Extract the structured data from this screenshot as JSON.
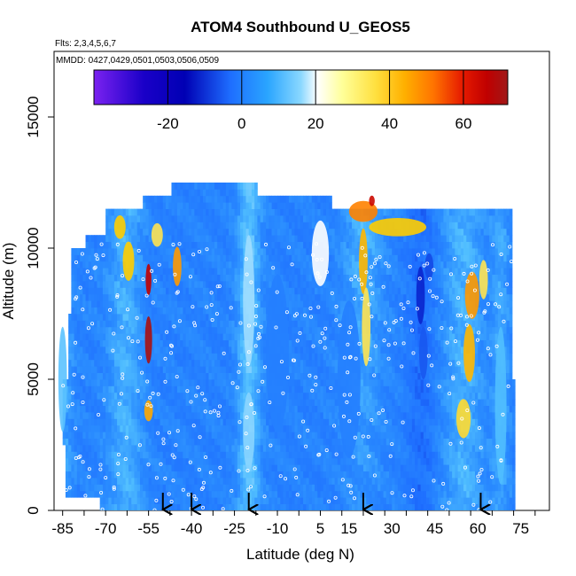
{
  "chart_data": {
    "type": "heatmap",
    "title": "ATOM4 Southbound U_GEOS5",
    "subtitle_flights": "Flts: 2,3,4,5,6,7",
    "subtitle_dates": "MMDD: 0427,0429,0501,0503,0506,0509",
    "xlabel": "Latitude (deg N)",
    "ylabel": "Altitude (m)",
    "xlim": [
      -88,
      85
    ],
    "ylim": [
      0,
      17500
    ],
    "x_ticks": [
      -85,
      -70,
      -55,
      -40,
      -25,
      -10,
      5,
      15,
      30,
      45,
      60,
      75
    ],
    "y_ticks": [
      0,
      5000,
      10000,
      15000
    ],
    "colorbar": {
      "range": [
        -40,
        72
      ],
      "ticks": [
        -20,
        0,
        20,
        40,
        60
      ],
      "colors": [
        "#7b22f0",
        "#0000b4",
        "#1e6eff",
        "#5ac8ff",
        "#ffffff",
        "#ffff80",
        "#ffd000",
        "#ff7f00",
        "#dd0000",
        "#a01818"
      ]
    },
    "curtain": {
      "lat_range": [
        -88,
        72
      ],
      "layer_tops": [
        {
          "alt": 12500,
          "lat_min": -47,
          "lat_max": -17
        },
        {
          "alt": 12000,
          "lat_min": -57,
          "lat_max": 9
        },
        {
          "alt": 11500,
          "lat_min": -70,
          "lat_max": 72
        },
        {
          "alt": 10500,
          "lat_min": -77,
          "lat_max": 72
        },
        {
          "alt": 10000,
          "lat_min": -82,
          "lat_max": 72
        },
        {
          "alt": 7500,
          "lat_min": -83,
          "lat_max": 72
        },
        {
          "alt": 5000,
          "lat_min": -85,
          "lat_max": 73
        },
        {
          "alt": 2500,
          "lat_min": -84,
          "lat_max": 73
        },
        {
          "alt": 500,
          "lat_min": -72,
          "lat_max": 73
        }
      ],
      "features": [
        {
          "lat": -55,
          "alt": 8800,
          "u": 65,
          "width": 2,
          "height": 1200
        },
        {
          "lat": -55,
          "alt": 6500,
          "u": 70,
          "width": 2.5,
          "height": 1800
        },
        {
          "lat": -55,
          "alt": 3800,
          "u": 40,
          "width": 3,
          "height": 800
        },
        {
          "lat": -62,
          "alt": 9500,
          "u": 35,
          "width": 4,
          "height": 1500
        },
        {
          "lat": -65,
          "alt": 10800,
          "u": 35,
          "width": 4,
          "height": 900
        },
        {
          "lat": -45,
          "alt": 9300,
          "u": 42,
          "width": 3,
          "height": 1500
        },
        {
          "lat": -52,
          "alt": 10500,
          "u": 30,
          "width": 4,
          "height": 900
        },
        {
          "lat": 20,
          "alt": 11400,
          "u": 45,
          "width": 10,
          "height": 800
        },
        {
          "lat": 23,
          "alt": 11800,
          "u": 62,
          "width": 2,
          "height": 400
        },
        {
          "lat": 32,
          "alt": 10800,
          "u": 35,
          "width": 20,
          "height": 700
        },
        {
          "lat": 20,
          "alt": 9500,
          "u": 38,
          "width": 3,
          "height": 2500
        },
        {
          "lat": 21,
          "alt": 7000,
          "u": 30,
          "width": 3,
          "height": 3000
        },
        {
          "lat": 40,
          "alt": 8200,
          "u": -25,
          "width": 3,
          "height": 2200
        },
        {
          "lat": 41,
          "alt": 6000,
          "u": -18,
          "width": 3,
          "height": 2000
        },
        {
          "lat": 43,
          "alt": 9300,
          "u": -20,
          "width": 3,
          "height": 1000
        },
        {
          "lat": 58,
          "alt": 8200,
          "u": 42,
          "width": 5,
          "height": 1800
        },
        {
          "lat": 57,
          "alt": 6000,
          "u": 38,
          "width": 4,
          "height": 2200
        },
        {
          "lat": 55,
          "alt": 3500,
          "u": 32,
          "width": 5,
          "height": 1500
        },
        {
          "lat": 62,
          "alt": 8800,
          "u": 30,
          "width": 3,
          "height": 1500
        },
        {
          "lat": 5,
          "alt": 9800,
          "u": 20,
          "width": 6,
          "height": 2500
        },
        {
          "lat": -20,
          "alt": 8000,
          "u": 12,
          "width": 4,
          "height": 5000
        },
        {
          "lat": -20,
          "alt": 3000,
          "u": 10,
          "width": 4,
          "height": 3000
        },
        {
          "lat": -10,
          "alt": 6000,
          "u": -9,
          "width": 8,
          "height": 6000
        },
        {
          "lat": 15,
          "alt": 5000,
          "u": -9,
          "width": 8,
          "height": 6000
        },
        {
          "lat": 68,
          "alt": 4000,
          "u": 5,
          "width": 4,
          "height": 6000
        },
        {
          "lat": -85,
          "alt": 5000,
          "u": 6,
          "width": 3,
          "height": 4000
        }
      ]
    },
    "flight_markers": [
      -50,
      -40,
      -20,
      20,
      61
    ]
  }
}
